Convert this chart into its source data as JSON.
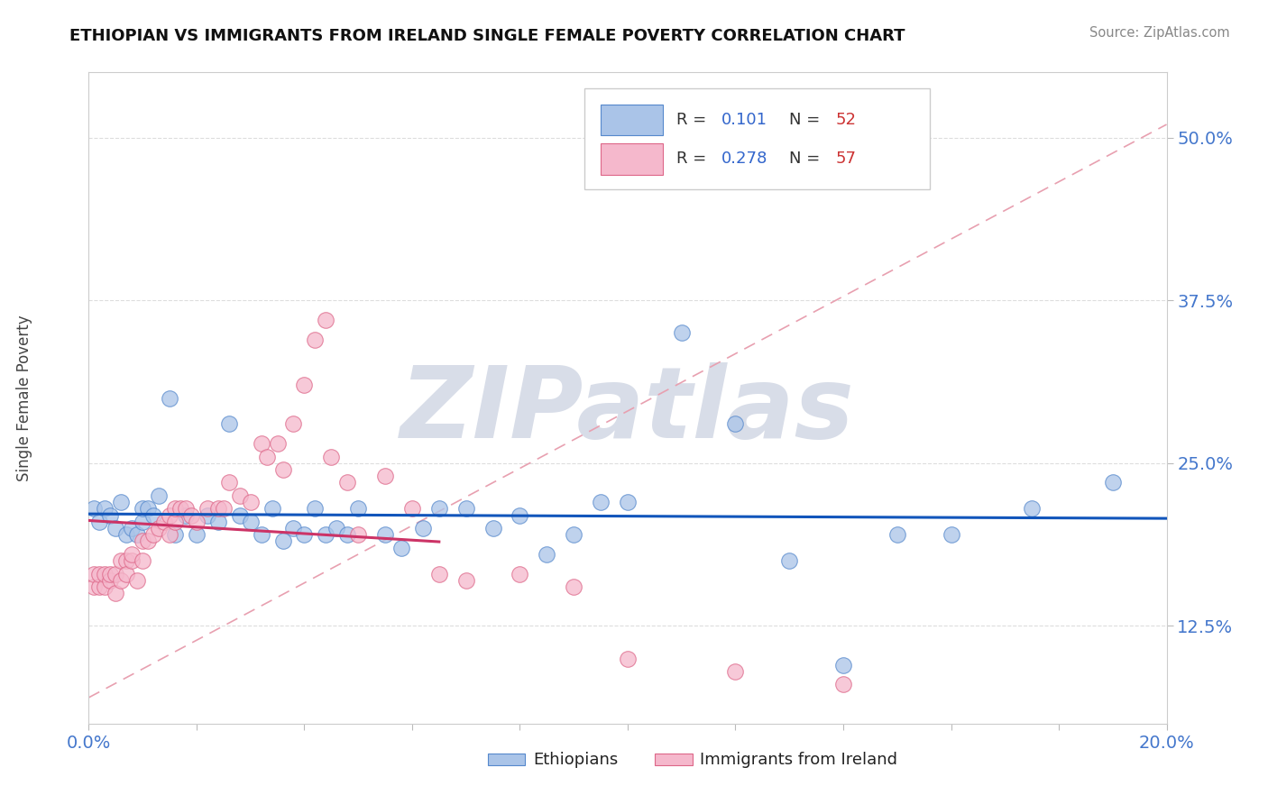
{
  "title": "ETHIOPIAN VS IMMIGRANTS FROM IRELAND SINGLE FEMALE POVERTY CORRELATION CHART",
  "source": "Source: ZipAtlas.com",
  "ylabel": "Single Female Poverty",
  "xlim": [
    0.0,
    0.2
  ],
  "ylim": [
    0.05,
    0.55
  ],
  "yticks": [
    0.125,
    0.25,
    0.375,
    0.5
  ],
  "ytick_labels": [
    "12.5%",
    "25.0%",
    "37.5%",
    "50.0%"
  ],
  "xticks": [
    0.0,
    0.02,
    0.04,
    0.06,
    0.08,
    0.1,
    0.12,
    0.14,
    0.16,
    0.18,
    0.2
  ],
  "ethiopian_R": 0.101,
  "ethiopian_N": 52,
  "ireland_R": 0.278,
  "ireland_N": 57,
  "ethiopian_color": "#aac4e8",
  "ireland_color": "#f5b8cc",
  "ethiopian_edge": "#5588cc",
  "ireland_edge": "#dd6688",
  "trend_blue": "#1155bb",
  "trend_pink": "#cc3366",
  "ref_line_color": "#e8a0b0",
  "watermark": "ZIPatlas",
  "watermark_color": "#d8dde8",
  "ethiopian_x": [
    0.001,
    0.002,
    0.003,
    0.004,
    0.005,
    0.006,
    0.007,
    0.008,
    0.009,
    0.01,
    0.01,
    0.011,
    0.012,
    0.013,
    0.015,
    0.016,
    0.018,
    0.02,
    0.022,
    0.024,
    0.026,
    0.028,
    0.03,
    0.032,
    0.034,
    0.036,
    0.038,
    0.04,
    0.042,
    0.044,
    0.046,
    0.048,
    0.05,
    0.055,
    0.058,
    0.062,
    0.065,
    0.07,
    0.075,
    0.08,
    0.085,
    0.09,
    0.095,
    0.1,
    0.11,
    0.12,
    0.13,
    0.14,
    0.15,
    0.16,
    0.175,
    0.19
  ],
  "ethiopian_y": [
    0.215,
    0.205,
    0.215,
    0.21,
    0.2,
    0.22,
    0.195,
    0.2,
    0.195,
    0.205,
    0.215,
    0.215,
    0.21,
    0.225,
    0.3,
    0.195,
    0.21,
    0.195,
    0.21,
    0.205,
    0.28,
    0.21,
    0.205,
    0.195,
    0.215,
    0.19,
    0.2,
    0.195,
    0.215,
    0.195,
    0.2,
    0.195,
    0.215,
    0.195,
    0.185,
    0.2,
    0.215,
    0.215,
    0.2,
    0.21,
    0.18,
    0.195,
    0.22,
    0.22,
    0.35,
    0.28,
    0.175,
    0.095,
    0.195,
    0.195,
    0.215,
    0.235
  ],
  "ireland_x": [
    0.001,
    0.001,
    0.002,
    0.002,
    0.003,
    0.003,
    0.004,
    0.004,
    0.005,
    0.005,
    0.006,
    0.006,
    0.007,
    0.007,
    0.008,
    0.008,
    0.009,
    0.01,
    0.01,
    0.011,
    0.012,
    0.013,
    0.014,
    0.015,
    0.015,
    0.016,
    0.016,
    0.017,
    0.018,
    0.019,
    0.02,
    0.022,
    0.024,
    0.025,
    0.026,
    0.028,
    0.03,
    0.032,
    0.033,
    0.035,
    0.036,
    0.038,
    0.04,
    0.042,
    0.044,
    0.045,
    0.048,
    0.05,
    0.055,
    0.06,
    0.065,
    0.07,
    0.08,
    0.09,
    0.1,
    0.12,
    0.14
  ],
  "ireland_y": [
    0.155,
    0.165,
    0.155,
    0.165,
    0.155,
    0.165,
    0.16,
    0.165,
    0.15,
    0.165,
    0.175,
    0.16,
    0.175,
    0.165,
    0.175,
    0.18,
    0.16,
    0.175,
    0.19,
    0.19,
    0.195,
    0.2,
    0.205,
    0.21,
    0.195,
    0.205,
    0.215,
    0.215,
    0.215,
    0.21,
    0.205,
    0.215,
    0.215,
    0.215,
    0.235,
    0.225,
    0.22,
    0.265,
    0.255,
    0.265,
    0.245,
    0.28,
    0.31,
    0.345,
    0.36,
    0.255,
    0.235,
    0.195,
    0.24,
    0.215,
    0.165,
    0.16,
    0.165,
    0.155,
    0.1,
    0.09,
    0.08
  ]
}
